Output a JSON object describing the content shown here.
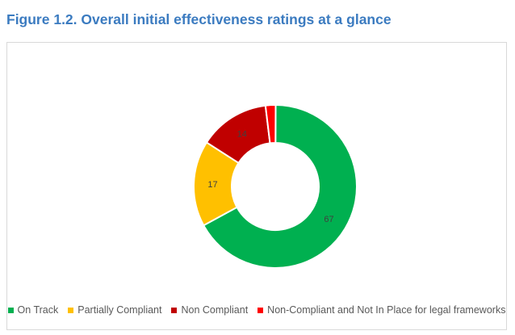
{
  "figure": {
    "title": "Figure 1.2. Overall initial effectiveness ratings at a glance"
  },
  "chart_data": {
    "type": "pie",
    "variant": "donut",
    "title": "Figure 1.2. Overall initial effectiveness ratings at a glance",
    "categories": [
      "On Track",
      "Partially Compliant",
      "Non Compliant",
      "Non-Compliant and Not In Place for legal frameworks"
    ],
    "values": [
      67,
      17,
      14,
      2
    ],
    "data_labels": [
      "67",
      "17",
      "14",
      ""
    ],
    "colors": [
      "#00b050",
      "#ffc000",
      "#c00000",
      "#ff0000"
    ],
    "legend_position": "bottom"
  }
}
